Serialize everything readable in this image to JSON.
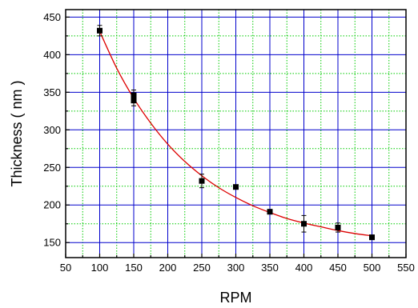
{
  "chart_data": {
    "type": "scatter",
    "xlabel": "RPM",
    "ylabel": "Thickness ( nm )",
    "xlim": [
      50,
      550
    ],
    "ylim": [
      130,
      460
    ],
    "x_ticks": [
      50,
      100,
      150,
      200,
      250,
      300,
      350,
      400,
      450,
      500,
      550
    ],
    "y_ticks": [
      150,
      200,
      250,
      300,
      350,
      400,
      450
    ],
    "x_tick_labels": [
      "50",
      "100",
      "150",
      "200",
      "250",
      "300",
      "350",
      "400",
      "450",
      "500",
      "550"
    ],
    "y_tick_labels": [
      "150",
      "200",
      "250",
      "300",
      "350",
      "400",
      "450"
    ],
    "grid": true,
    "grid_major_color": "#0000cc",
    "grid_minor_color": "#00cc00",
    "points": [
      {
        "x": 100,
        "y": 432,
        "err": 7
      },
      {
        "x": 150,
        "y": 346,
        "err": 7
      },
      {
        "x": 150,
        "y": 339,
        "err": 7
      },
      {
        "x": 250,
        "y": 232,
        "err": 9
      },
      {
        "x": 300,
        "y": 224,
        "err": 2
      },
      {
        "x": 350,
        "y": 191,
        "err": 3
      },
      {
        "x": 400,
        "y": 175,
        "err": 11
      },
      {
        "x": 450,
        "y": 170,
        "err": 6
      },
      {
        "x": 500,
        "y": 157,
        "err": 3
      }
    ],
    "point_color": "#000000",
    "fit": {
      "type": "exponential-decay",
      "x": [
        100,
        125,
        150,
        175,
        200,
        225,
        250,
        275,
        300,
        325,
        350,
        375,
        400,
        425,
        450,
        475,
        500
      ],
      "y": [
        431,
        382,
        342,
        309,
        281,
        258,
        239,
        223,
        210,
        199,
        190,
        182,
        176,
        171,
        166,
        162,
        159
      ],
      "color": "#dd0000"
    }
  }
}
